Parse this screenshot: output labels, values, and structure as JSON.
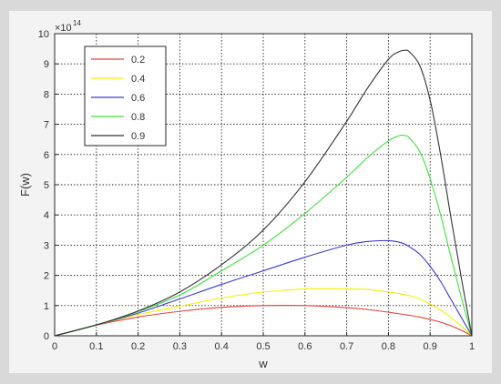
{
  "chart_data": {
    "type": "line",
    "xlabel": "w",
    "ylabel": "F(w)",
    "y_exponent_label": "×10",
    "y_exponent_power": "14",
    "xlim": [
      0,
      1
    ],
    "ylim": [
      0,
      10
    ],
    "xticks": [
      "0",
      "0.1",
      "0.2",
      "0.3",
      "0.4",
      "0.5",
      "0.6",
      "0.7",
      "0.8",
      "0.9",
      "1"
    ],
    "yticks": [
      "0",
      "1",
      "2",
      "3",
      "4",
      "5",
      "6",
      "7",
      "8",
      "9",
      "10"
    ],
    "grid": true,
    "legend_position": "top-left",
    "x": [
      0,
      0.1,
      0.2,
      0.3,
      0.4,
      0.5,
      0.6,
      0.7,
      0.75,
      0.8,
      0.825,
      0.84,
      0.85,
      0.875,
      0.9,
      0.925,
      0.95,
      0.975,
      1.0
    ],
    "series": [
      {
        "name": "0.2",
        "color": "#e8423a",
        "values": [
          0,
          0.35,
          0.62,
          0.81,
          0.94,
          1.0,
          1.0,
          0.93,
          0.87,
          0.78,
          0.73,
          0.7,
          0.68,
          0.62,
          0.54,
          0.45,
          0.33,
          0.18,
          0
        ]
      },
      {
        "name": "0.4",
        "color": "#f2f200",
        "values": [
          0,
          0.36,
          0.7,
          0.98,
          1.25,
          1.45,
          1.55,
          1.55,
          1.53,
          1.45,
          1.4,
          1.36,
          1.33,
          1.22,
          1.05,
          0.85,
          0.6,
          0.32,
          0
        ]
      },
      {
        "name": "0.6",
        "color": "#3a3ad0",
        "values": [
          0,
          0.36,
          0.75,
          1.22,
          1.7,
          2.15,
          2.6,
          3.0,
          3.12,
          3.15,
          3.1,
          3.03,
          2.95,
          2.7,
          2.3,
          1.8,
          1.2,
          0.6,
          0
        ]
      },
      {
        "name": "0.8",
        "color": "#3ee03e",
        "values": [
          0,
          0.36,
          0.8,
          1.35,
          2.15,
          3.0,
          4.05,
          5.25,
          5.9,
          6.45,
          6.62,
          6.63,
          6.55,
          6.1,
          5.2,
          4.0,
          2.6,
          1.25,
          0
        ]
      },
      {
        "name": "0.9",
        "color": "#333333",
        "values": [
          0,
          0.36,
          0.82,
          1.45,
          2.35,
          3.5,
          5.1,
          7.1,
          8.2,
          9.15,
          9.4,
          9.45,
          9.4,
          8.95,
          7.8,
          6.0,
          3.9,
          1.9,
          0
        ]
      }
    ]
  }
}
